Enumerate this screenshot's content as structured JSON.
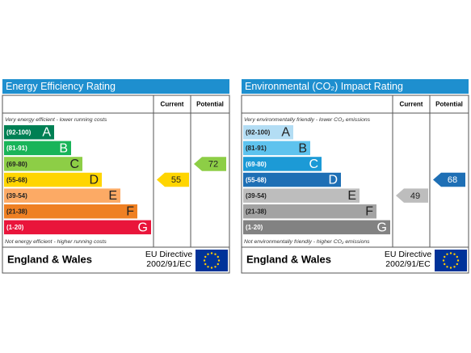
{
  "panels": [
    {
      "title": "Energy Efficiency Rating",
      "headers": [
        "Current",
        "Potential"
      ],
      "top_note": "Very energy efficient - lower running costs",
      "bands": [
        {
          "range": "(92-100)",
          "letter": "A"
        },
        {
          "range": "(81-91)",
          "letter": "B"
        },
        {
          "range": "(69-80)",
          "letter": "C"
        },
        {
          "range": "(55-68)",
          "letter": "D"
        },
        {
          "range": "(39-54)",
          "letter": "E"
        },
        {
          "range": "(21-38)",
          "letter": "F"
        },
        {
          "range": "(1-20)",
          "letter": "G"
        }
      ],
      "colors": [
        "#008054",
        "#19b459",
        "#8dce46",
        "#ffd500",
        "#fcaa65",
        "#ef8023",
        "#e9153b"
      ],
      "bottom_note": "Not energy efficient - higher running costs",
      "current": 55,
      "potential": 72,
      "footer": "England & Wales",
      "directive": [
        "EU Directive",
        "2002/91/EC"
      ]
    },
    {
      "title": "Environmental (CO₂) Impact Rating",
      "headers": [
        "Current",
        "Potential"
      ],
      "top_note": "Very environmentally friendly - lower CO₂ emissions",
      "bands": [
        {
          "range": "(92-100)",
          "letter": "A"
        },
        {
          "range": "(81-91)",
          "letter": "B"
        },
        {
          "range": "(69-80)",
          "letter": "C"
        },
        {
          "range": "(55-68)",
          "letter": "D"
        },
        {
          "range": "(39-54)",
          "letter": "E"
        },
        {
          "range": "(21-38)",
          "letter": "F"
        },
        {
          "range": "(1-20)",
          "letter": "G"
        }
      ],
      "colors": [
        "#b3ddf4",
        "#5ec3ee",
        "#1c9ad6",
        "#1e6fb5",
        "#bdbdbd",
        "#a3a3a3",
        "#828282"
      ],
      "bottom_note": "Not environmentally friendly - higher CO₂ emissions",
      "current": 49,
      "potential": 68,
      "footer": "England & Wales",
      "directive": [
        "EU Directive",
        "2002/91/EC"
      ]
    }
  ]
}
